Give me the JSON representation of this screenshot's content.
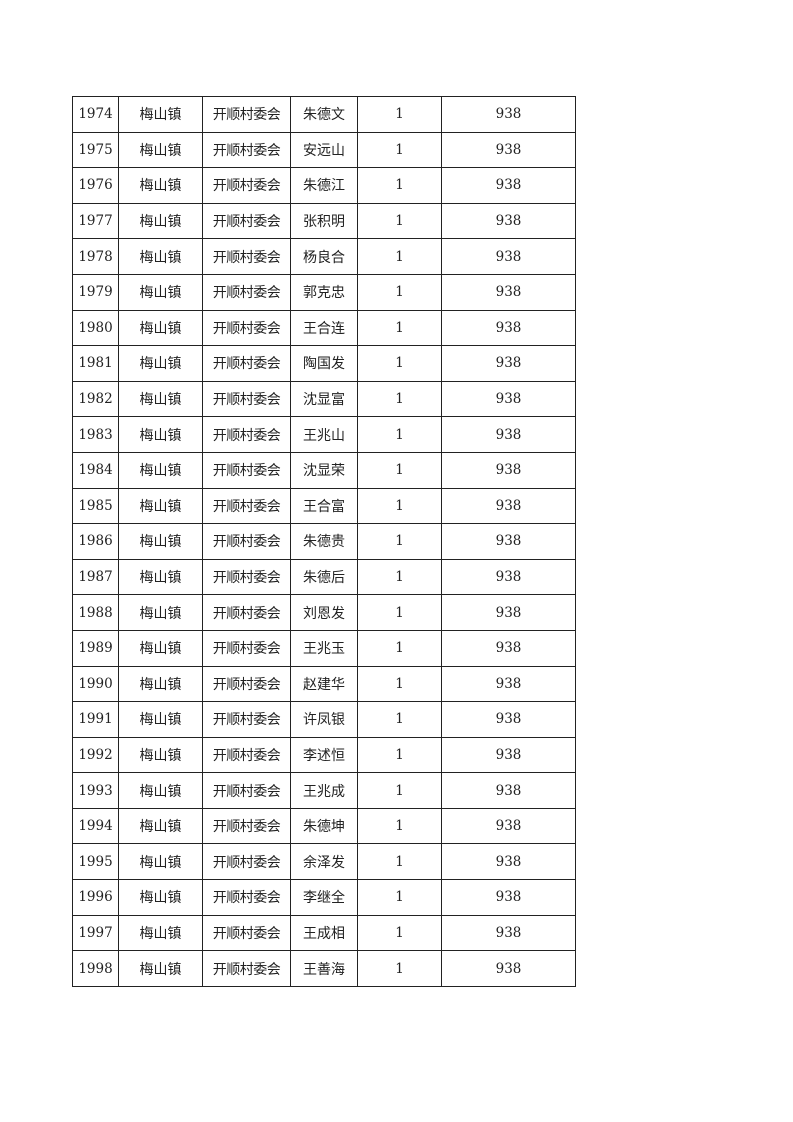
{
  "table": {
    "rows": [
      [
        "1974",
        "梅山镇",
        "开顺村委会",
        "朱德文",
        "1",
        "938"
      ],
      [
        "1975",
        "梅山镇",
        "开顺村委会",
        "安远山",
        "1",
        "938"
      ],
      [
        "1976",
        "梅山镇",
        "开顺村委会",
        "朱德江",
        "1",
        "938"
      ],
      [
        "1977",
        "梅山镇",
        "开顺村委会",
        "张积明",
        "1",
        "938"
      ],
      [
        "1978",
        "梅山镇",
        "开顺村委会",
        "杨良合",
        "1",
        "938"
      ],
      [
        "1979",
        "梅山镇",
        "开顺村委会",
        "郭克忠",
        "1",
        "938"
      ],
      [
        "1980",
        "梅山镇",
        "开顺村委会",
        "王合连",
        "1",
        "938"
      ],
      [
        "1981",
        "梅山镇",
        "开顺村委会",
        "陶国发",
        "1",
        "938"
      ],
      [
        "1982",
        "梅山镇",
        "开顺村委会",
        "沈显富",
        "1",
        "938"
      ],
      [
        "1983",
        "梅山镇",
        "开顺村委会",
        "王兆山",
        "1",
        "938"
      ],
      [
        "1984",
        "梅山镇",
        "开顺村委会",
        "沈显荣",
        "1",
        "938"
      ],
      [
        "1985",
        "梅山镇",
        "开顺村委会",
        "王合富",
        "1",
        "938"
      ],
      [
        "1986",
        "梅山镇",
        "开顺村委会",
        "朱德贵",
        "1",
        "938"
      ],
      [
        "1987",
        "梅山镇",
        "开顺村委会",
        "朱德后",
        "1",
        "938"
      ],
      [
        "1988",
        "梅山镇",
        "开顺村委会",
        "刘恩发",
        "1",
        "938"
      ],
      [
        "1989",
        "梅山镇",
        "开顺村委会",
        "王兆玉",
        "1",
        "938"
      ],
      [
        "1990",
        "梅山镇",
        "开顺村委会",
        "赵建华",
        "1",
        "938"
      ],
      [
        "1991",
        "梅山镇",
        "开顺村委会",
        "许凤银",
        "1",
        "938"
      ],
      [
        "1992",
        "梅山镇",
        "开顺村委会",
        "李述恒",
        "1",
        "938"
      ],
      [
        "1993",
        "梅山镇",
        "开顺村委会",
        "王兆成",
        "1",
        "938"
      ],
      [
        "1994",
        "梅山镇",
        "开顺村委会",
        "朱德坤",
        "1",
        "938"
      ],
      [
        "1995",
        "梅山镇",
        "开顺村委会",
        "余泽发",
        "1",
        "938"
      ],
      [
        "1996",
        "梅山镇",
        "开顺村委会",
        "李继全",
        "1",
        "938"
      ],
      [
        "1997",
        "梅山镇",
        "开顺村委会",
        "王成相",
        "1",
        "938"
      ],
      [
        "1998",
        "梅山镇",
        "开顺村委会",
        "王善海",
        "1",
        "938"
      ]
    ]
  }
}
